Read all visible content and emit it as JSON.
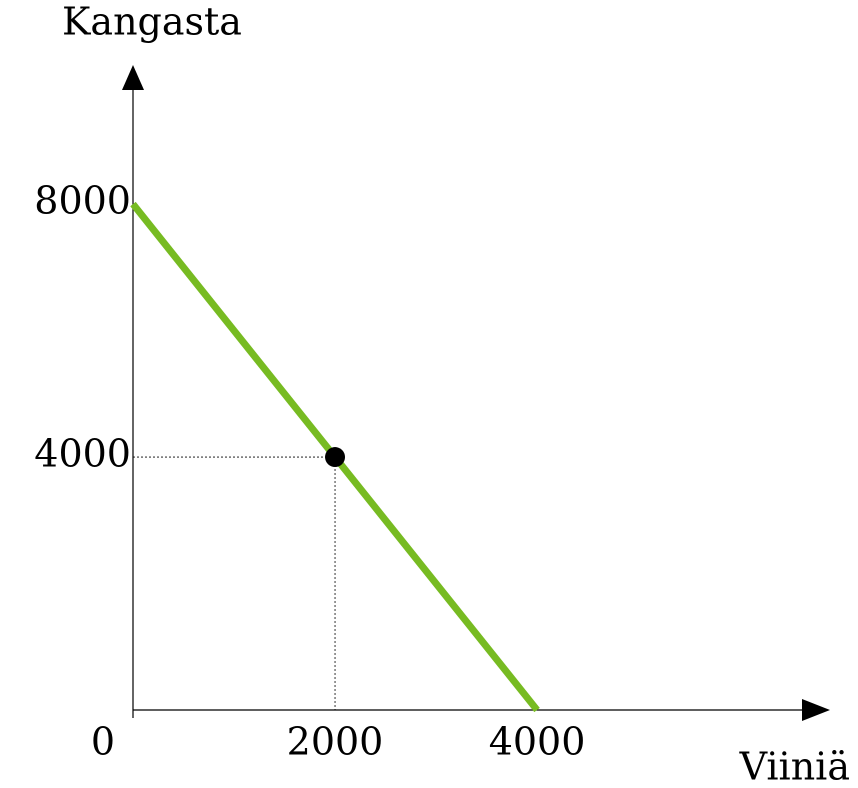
{
  "chart_data": {
    "type": "line",
    "y_label": "Kangasta",
    "x_label": "Viiniä",
    "xlim": [
      0,
      6900
    ],
    "ylim": [
      0,
      10200
    ],
    "xticks": [
      0,
      2000,
      4000
    ],
    "yticks": [
      4000,
      8000
    ],
    "series": [
      {
        "x": [
          0,
          4000
        ],
        "values": [
          8000,
          0
        ],
        "color": "#77bb22"
      }
    ],
    "points": {
      "x": [
        2000
      ],
      "values": [
        4000
      ],
      "color": "#000000"
    }
  }
}
